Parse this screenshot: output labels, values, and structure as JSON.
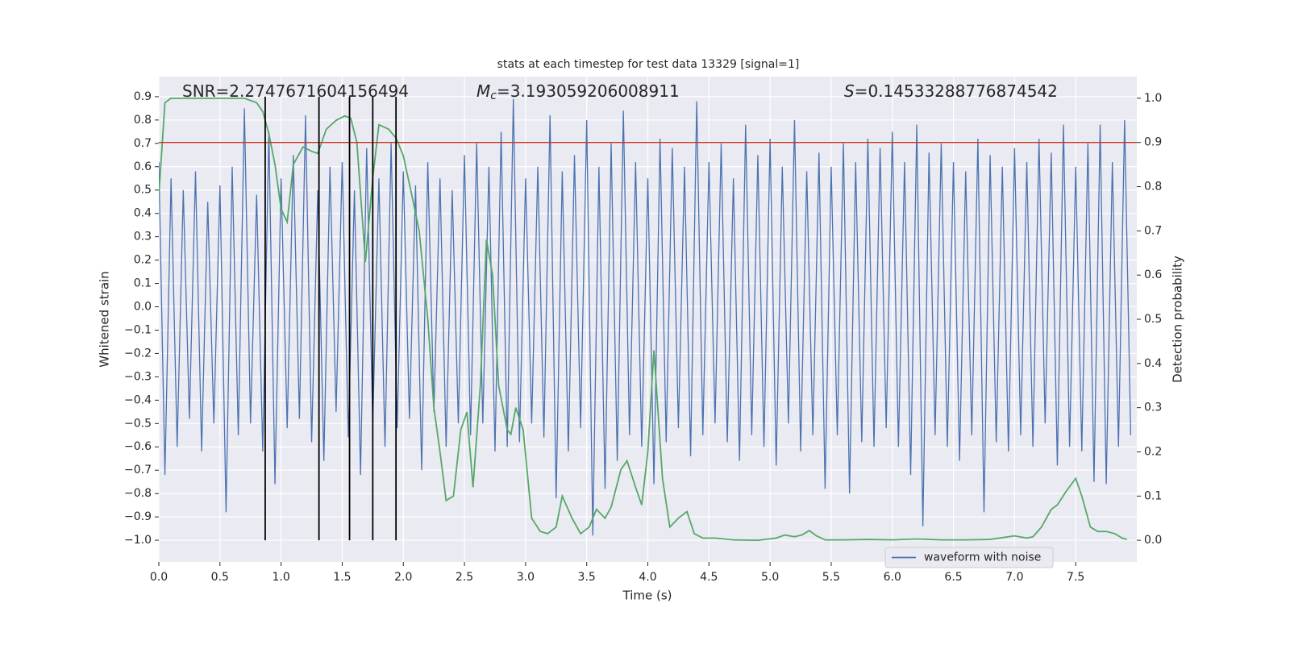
{
  "chart_data": {
    "type": "line",
    "title": "stats at each timestep for test data 13329 [signal=1]",
    "xlabel": "Time (s)",
    "ylabel": "Whitened strain",
    "y2label": "Detection probability",
    "background": "#eaeaf2",
    "grid": true,
    "legend": "lower right",
    "xlim": [
      0,
      8.0
    ],
    "xticks": [
      {
        "value": 0,
        "label": "0.0"
      },
      {
        "value": 0.5,
        "label": "0.5"
      },
      {
        "value": 1,
        "label": "1.0"
      },
      {
        "value": 1.5,
        "label": "1.5"
      },
      {
        "value": 2,
        "label": "2.0"
      },
      {
        "value": 2.5,
        "label": "2.5"
      },
      {
        "value": 3,
        "label": "3.0"
      },
      {
        "value": 3.5,
        "label": "3.5"
      },
      {
        "value": 4,
        "label": "4.0"
      },
      {
        "value": 4.5,
        "label": "4.5"
      },
      {
        "value": 5,
        "label": "5.0"
      },
      {
        "value": 5.5,
        "label": "5.5"
      },
      {
        "value": 6,
        "label": "6.0"
      },
      {
        "value": 6.5,
        "label": "6.5"
      },
      {
        "value": 7,
        "label": "7.0"
      },
      {
        "value": 7.5,
        "label": "7.5"
      }
    ],
    "ylim": [
      -1.093,
      0.986
    ],
    "yticks": [
      0.9,
      0.8,
      0.7,
      0.6,
      0.5,
      0.4,
      0.3,
      0.2,
      0.1,
      {
        "value": 0,
        "label": "0.0"
      },
      {
        "value": -0.1,
        "label": "−0.1"
      },
      {
        "value": -0.2,
        "label": "−0.2"
      },
      {
        "value": -0.3,
        "label": "−0.3"
      },
      {
        "value": -0.4,
        "label": "−0.4"
      },
      {
        "value": -0.5,
        "label": "−0.5"
      },
      {
        "value": -0.6,
        "label": "−0.6"
      },
      {
        "value": -0.7,
        "label": "−0.7"
      },
      {
        "value": -0.8,
        "label": "−0.8"
      },
      {
        "value": -0.9,
        "label": "−0.9"
      },
      {
        "value": -1,
        "label": "−1.0"
      }
    ],
    "y2lim": [
      -0.049,
      1.049
    ],
    "y2ticks": [
      {
        "value": 1,
        "label": "1.0"
      },
      0.9,
      0.8,
      0.7,
      0.6,
      0.5,
      0.4,
      0.3,
      0.2,
      0.1,
      {
        "value": 0,
        "label": "0.0"
      }
    ],
    "annotations": [
      {
        "text": "SNR=2.2747671604156494"
      },
      {
        "symbol": "M",
        "sub": "c",
        "text": "=3.193059206008911"
      },
      {
        "symbol": "S",
        "text": "=0.14533288776874542"
      }
    ],
    "series": [
      {
        "name": "waveform with noise",
        "color": "#4c72b0",
        "x": [
          0,
          0.05,
          0.1,
          0.15,
          0.2,
          0.25,
          0.3,
          0.35,
          0.4,
          0.45,
          0.5,
          0.55,
          0.6,
          0.65,
          0.7,
          0.75,
          0.8,
          0.85,
          0.9,
          0.95,
          1,
          1.05,
          1.1,
          1.15,
          1.2,
          1.25,
          1.3,
          1.35,
          1.4,
          1.45,
          1.5,
          1.55,
          1.6,
          1.65,
          1.7,
          1.75,
          1.8,
          1.85,
          1.9,
          1.95,
          2,
          2.05,
          2.1,
          2.15,
          2.2,
          2.25,
          2.3,
          2.35,
          2.4,
          2.45,
          2.5,
          2.55,
          2.6,
          2.65,
          2.7,
          2.75,
          2.8,
          2.85,
          2.9,
          2.95,
          3,
          3.05,
          3.1,
          3.15,
          3.2,
          3.25,
          3.3,
          3.35,
          3.4,
          3.45,
          3.5,
          3.55,
          3.6,
          3.65,
          3.7,
          3.75,
          3.8,
          3.85,
          3.9,
          3.95,
          4,
          4.05,
          4.1,
          4.15,
          4.2,
          4.25,
          4.3,
          4.35,
          4.4,
          4.45,
          4.5,
          4.55,
          4.6,
          4.65,
          4.7,
          4.75,
          4.8,
          4.85,
          4.9,
          4.95,
          5,
          5.05,
          5.1,
          5.15,
          5.2,
          5.25,
          5.3,
          5.35,
          5.4,
          5.45,
          5.5,
          5.55,
          5.6,
          5.65,
          5.7,
          5.75,
          5.8,
          5.85,
          5.9,
          5.95,
          6,
          6.05,
          6.1,
          6.15,
          6.2,
          6.25,
          6.3,
          6.35,
          6.4,
          6.45,
          6.5,
          6.55,
          6.6,
          6.65,
          6.7,
          6.75,
          6.8,
          6.85,
          6.9,
          6.95,
          7,
          7.05,
          7.1,
          7.15,
          7.2,
          7.25,
          7.3,
          7.35,
          7.4,
          7.45,
          7.5,
          7.55,
          7.6,
          7.65,
          7.7,
          7.75,
          7.8,
          7.85,
          7.9,
          7.95
        ],
        "values": [
          0.62,
          -0.72,
          0.55,
          -0.6,
          0.5,
          -0.48,
          0.58,
          -0.62,
          0.45,
          -0.5,
          0.52,
          -0.88,
          0.6,
          -0.55,
          0.85,
          -0.5,
          0.48,
          -0.62,
          0.75,
          -0.76,
          0.55,
          -0.52,
          0.65,
          -0.48,
          0.82,
          -0.58,
          0.5,
          -0.66,
          0.6,
          -0.45,
          0.62,
          -0.56,
          0.5,
          -0.72,
          0.68,
          -0.5,
          0.55,
          -0.6,
          0.7,
          -0.52,
          0.58,
          -0.48,
          0.52,
          -0.7,
          0.62,
          -0.45,
          0.55,
          -0.6,
          0.5,
          -0.5,
          0.65,
          -0.55,
          0.7,
          -0.5,
          0.6,
          -0.62,
          0.75,
          -0.6,
          0.89,
          -0.58,
          0.55,
          -0.5,
          0.6,
          -0.56,
          0.82,
          -0.82,
          0.58,
          -0.62,
          0.65,
          -0.52,
          0.8,
          -0.98,
          0.6,
          -0.78,
          0.7,
          -0.66,
          0.84,
          -0.55,
          0.62,
          -0.6,
          0.55,
          -0.76,
          0.72,
          -0.58,
          0.68,
          -0.52,
          0.6,
          -0.64,
          0.88,
          -0.55,
          0.62,
          -0.5,
          0.7,
          -0.58,
          0.55,
          -0.66,
          0.78,
          -0.55,
          0.65,
          -0.6,
          0.72,
          -0.68,
          0.6,
          -0.5,
          0.8,
          -0.62,
          0.58,
          -0.55,
          0.66,
          -0.78,
          0.6,
          -0.55,
          0.7,
          -0.8,
          0.62,
          -0.58,
          0.72,
          -0.6,
          0.68,
          -0.52,
          0.75,
          -0.6,
          0.62,
          -0.72,
          0.78,
          -0.94,
          0.66,
          -0.55,
          0.7,
          -0.6,
          0.62,
          -0.66,
          0.58,
          -0.55,
          0.72,
          -0.88,
          0.65,
          -0.58,
          0.6,
          -0.62,
          0.68,
          -0.55,
          0.62,
          -0.6,
          0.72,
          -0.5,
          0.66,
          -0.68,
          0.78,
          -0.6,
          0.6,
          -0.62,
          0.7,
          -0.75,
          0.78,
          -0.76,
          0.62,
          -0.6,
          0.8,
          -0.55
        ]
      },
      {
        "color": "#55a868",
        "axis": "y2",
        "x": [
          0,
          0.05,
          0.1,
          0.2,
          0.4,
          0.6,
          0.7,
          0.8,
          0.85,
          0.9,
          0.95,
          1,
          1.05,
          1.1,
          1.18,
          1.25,
          1.3,
          1.37,
          1.45,
          1.52,
          1.57,
          1.62,
          1.69,
          1.75,
          1.8,
          1.88,
          1.94,
          2,
          2.07,
          2.13,
          2.2,
          2.25,
          2.3,
          2.35,
          2.41,
          2.47,
          2.52,
          2.57,
          2.63,
          2.68,
          2.73,
          2.78,
          2.85,
          2.88,
          2.92,
          2.98,
          3.05,
          3.12,
          3.18,
          3.25,
          3.3,
          3.38,
          3.45,
          3.52,
          3.58,
          3.65,
          3.7,
          3.78,
          3.83,
          3.9,
          3.95,
          4,
          4.05,
          4.12,
          4.18,
          4.25,
          4.32,
          4.38,
          4.45,
          4.55,
          4.7,
          4.9,
          5.05,
          5.12,
          5.2,
          5.26,
          5.32,
          5.38,
          5.45,
          5.6,
          5.8,
          6,
          6.2,
          6.4,
          6.6,
          6.8,
          7,
          7.1,
          7.15,
          7.22,
          7.3,
          7.35,
          7.42,
          7.5,
          7.55,
          7.62,
          7.68,
          7.75,
          7.82,
          7.88,
          7.92
        ],
        "values": [
          0.78,
          0.99,
          1.0,
          1.0,
          1.0,
          1.0,
          1.0,
          0.99,
          0.97,
          0.92,
          0.85,
          0.75,
          0.72,
          0.85,
          0.89,
          0.88,
          0.875,
          0.93,
          0.95,
          0.96,
          0.955,
          0.9,
          0.63,
          0.82,
          0.94,
          0.93,
          0.91,
          0.87,
          0.78,
          0.7,
          0.5,
          0.3,
          0.2,
          0.09,
          0.1,
          0.25,
          0.29,
          0.12,
          0.35,
          0.68,
          0.6,
          0.35,
          0.25,
          0.24,
          0.3,
          0.25,
          0.05,
          0.02,
          0.015,
          0.03,
          0.1,
          0.05,
          0.015,
          0.03,
          0.07,
          0.05,
          0.075,
          0.16,
          0.18,
          0.12,
          0.08,
          0.2,
          0.43,
          0.14,
          0.03,
          0.05,
          0.065,
          0.015,
          0.005,
          0.005,
          0.001,
          0.0,
          0.005,
          0.012,
          0.008,
          0.012,
          0.022,
          0.01,
          0.001,
          0.001,
          0.002,
          0.001,
          0.003,
          0.001,
          0.001,
          0.002,
          0.01,
          0.005,
          0.008,
          0.03,
          0.07,
          0.08,
          0.11,
          0.14,
          0.1,
          0.03,
          0.02,
          0.02,
          0.015,
          0.005,
          0.002
        ]
      }
    ],
    "threshold": {
      "value": 0.9,
      "axis": "y2",
      "color": "#c03a2b"
    },
    "vlines": {
      "x": [
        0.87,
        1.31,
        1.56,
        1.75,
        1.94
      ],
      "ymin": -1.0,
      "ymax": 0.9,
      "color": "#000000"
    }
  }
}
